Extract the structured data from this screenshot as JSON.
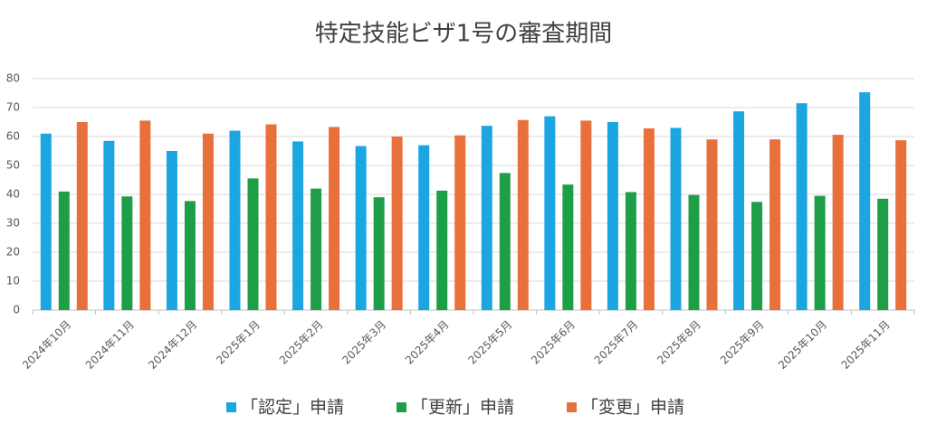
{
  "chart_data": {
    "type": "bar",
    "title": "特定技能ビザ1号の審査期間",
    "categories": [
      "2024年10月",
      "2024年11月",
      "2024年12月",
      "2025年1月",
      "2025年2月",
      "2025年3月",
      "2025年4月",
      "2025年5月",
      "2025年6月",
      "2025年7月",
      "2025年8月",
      "2025年9月",
      "2025年10月",
      "2025年11月"
    ],
    "series": [
      {
        "name": "「認定」申請",
        "color": "#1ba6e2",
        "values": [
          61,
          58.5,
          55,
          62,
          58.3,
          56.7,
          57,
          63.7,
          67,
          65,
          63,
          68.7,
          71.5,
          75.3
        ]
      },
      {
        "name": "「更新」申請",
        "color": "#1f9e48",
        "values": [
          41,
          39.3,
          37.7,
          45.5,
          42,
          39,
          41.3,
          47.4,
          43.4,
          40.8,
          39.8,
          37.4,
          39.5,
          38.5
        ]
      },
      {
        "name": "「変更」申請",
        "color": "#e8703a",
        "values": [
          65,
          65.5,
          61,
          64.2,
          63.3,
          60,
          60.4,
          65.7,
          65.5,
          62.8,
          59,
          59,
          60.6,
          58.7
        ]
      }
    ],
    "ylim": [
      0,
      80
    ],
    "yticks": [
      0,
      10,
      20,
      30,
      40,
      50,
      60,
      70,
      80
    ],
    "grid": true,
    "legend": "bottom"
  }
}
